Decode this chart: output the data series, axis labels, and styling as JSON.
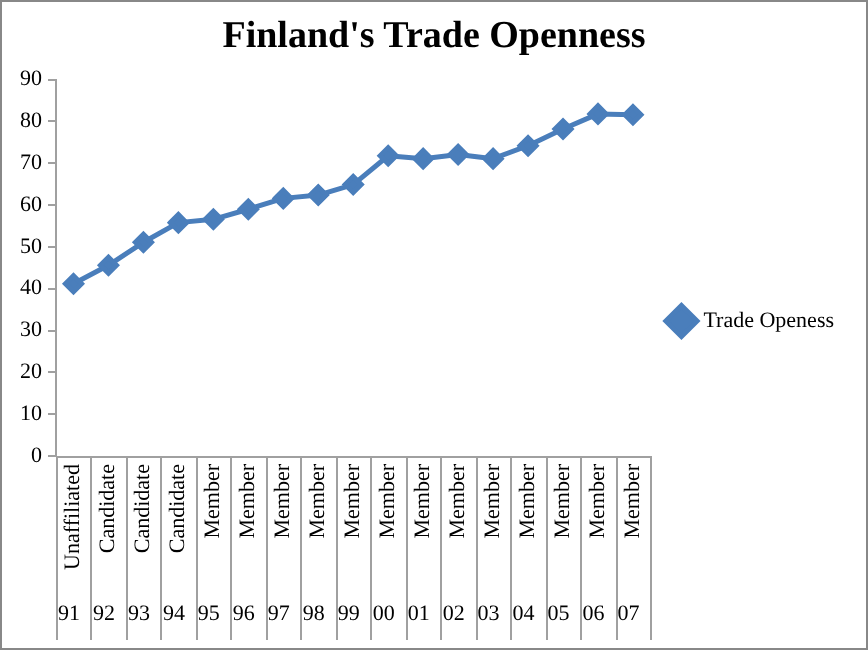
{
  "chart_data": {
    "type": "line",
    "title": "Finland's Trade Openness",
    "categories": [
      "91",
      "92",
      "93",
      "94",
      "95",
      "96",
      "97",
      "98",
      "99",
      "00",
      "01",
      "02",
      "03",
      "04",
      "05",
      "06",
      "07"
    ],
    "series": [
      {
        "name": "Trade Openess",
        "color": "#4a7ebb",
        "values": [
          41.2,
          45.6,
          51.1,
          55.8,
          56.6,
          59,
          61.6,
          62.4,
          64.9,
          71.8,
          71.1,
          72.1,
          71.1,
          74.2,
          78.2,
          81.8,
          81.6
        ]
      }
    ],
    "annotations": [
      "Unaffiliated",
      "Candidate",
      "Candidate",
      "Candidate",
      "Member",
      "Member",
      "Member",
      "Member",
      "Member",
      "Member",
      "Member",
      "Member",
      "Member",
      "Member",
      "Member",
      "Member",
      "Member"
    ],
    "ylim": [
      0,
      90
    ],
    "yticks": [
      0,
      10,
      20,
      30,
      40,
      50,
      60,
      70,
      80,
      90
    ],
    "grid": false,
    "legend": "right",
    "marker": "diamond",
    "line_style": "solid"
  }
}
